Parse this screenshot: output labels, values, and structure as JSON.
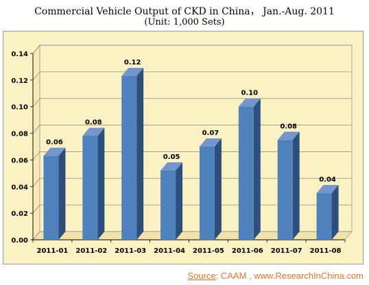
{
  "title": "Commercial Vehicle Output of CKD in China， Jan.-Aug. 2011",
  "subtitle": "(Unit: 1,000 Sets)",
  "source": {
    "label": "Source",
    "text": ":  CAAM , www.ResearchInChina.com"
  },
  "colors": {
    "bar_front": "#4f81bd",
    "bar_side": "#2c4f7c",
    "bar_top": "#7396cc",
    "plot_bg": "#fcf1c2",
    "source": "#e8712a"
  },
  "chart_data": {
    "type": "bar",
    "categories": [
      "2011-01",
      "2011-02",
      "2011-03",
      "2011-04",
      "2011-05",
      "2011-06",
      "2011-07",
      "2011-08"
    ],
    "values": [
      0.063,
      0.078,
      0.123,
      0.052,
      0.07,
      0.1,
      0.075,
      0.035
    ],
    "data_labels": [
      "0.06",
      "0.08",
      "0.12",
      "0.05",
      "0.07",
      "0.10",
      "0.08",
      "0.04"
    ],
    "yticks": [
      "0.00",
      "0.02",
      "0.04",
      "0.06",
      "0.08",
      "0.10",
      "0.12",
      "0.14"
    ],
    "ylim": [
      0,
      0.14
    ],
    "grid": true,
    "legend": false
  }
}
